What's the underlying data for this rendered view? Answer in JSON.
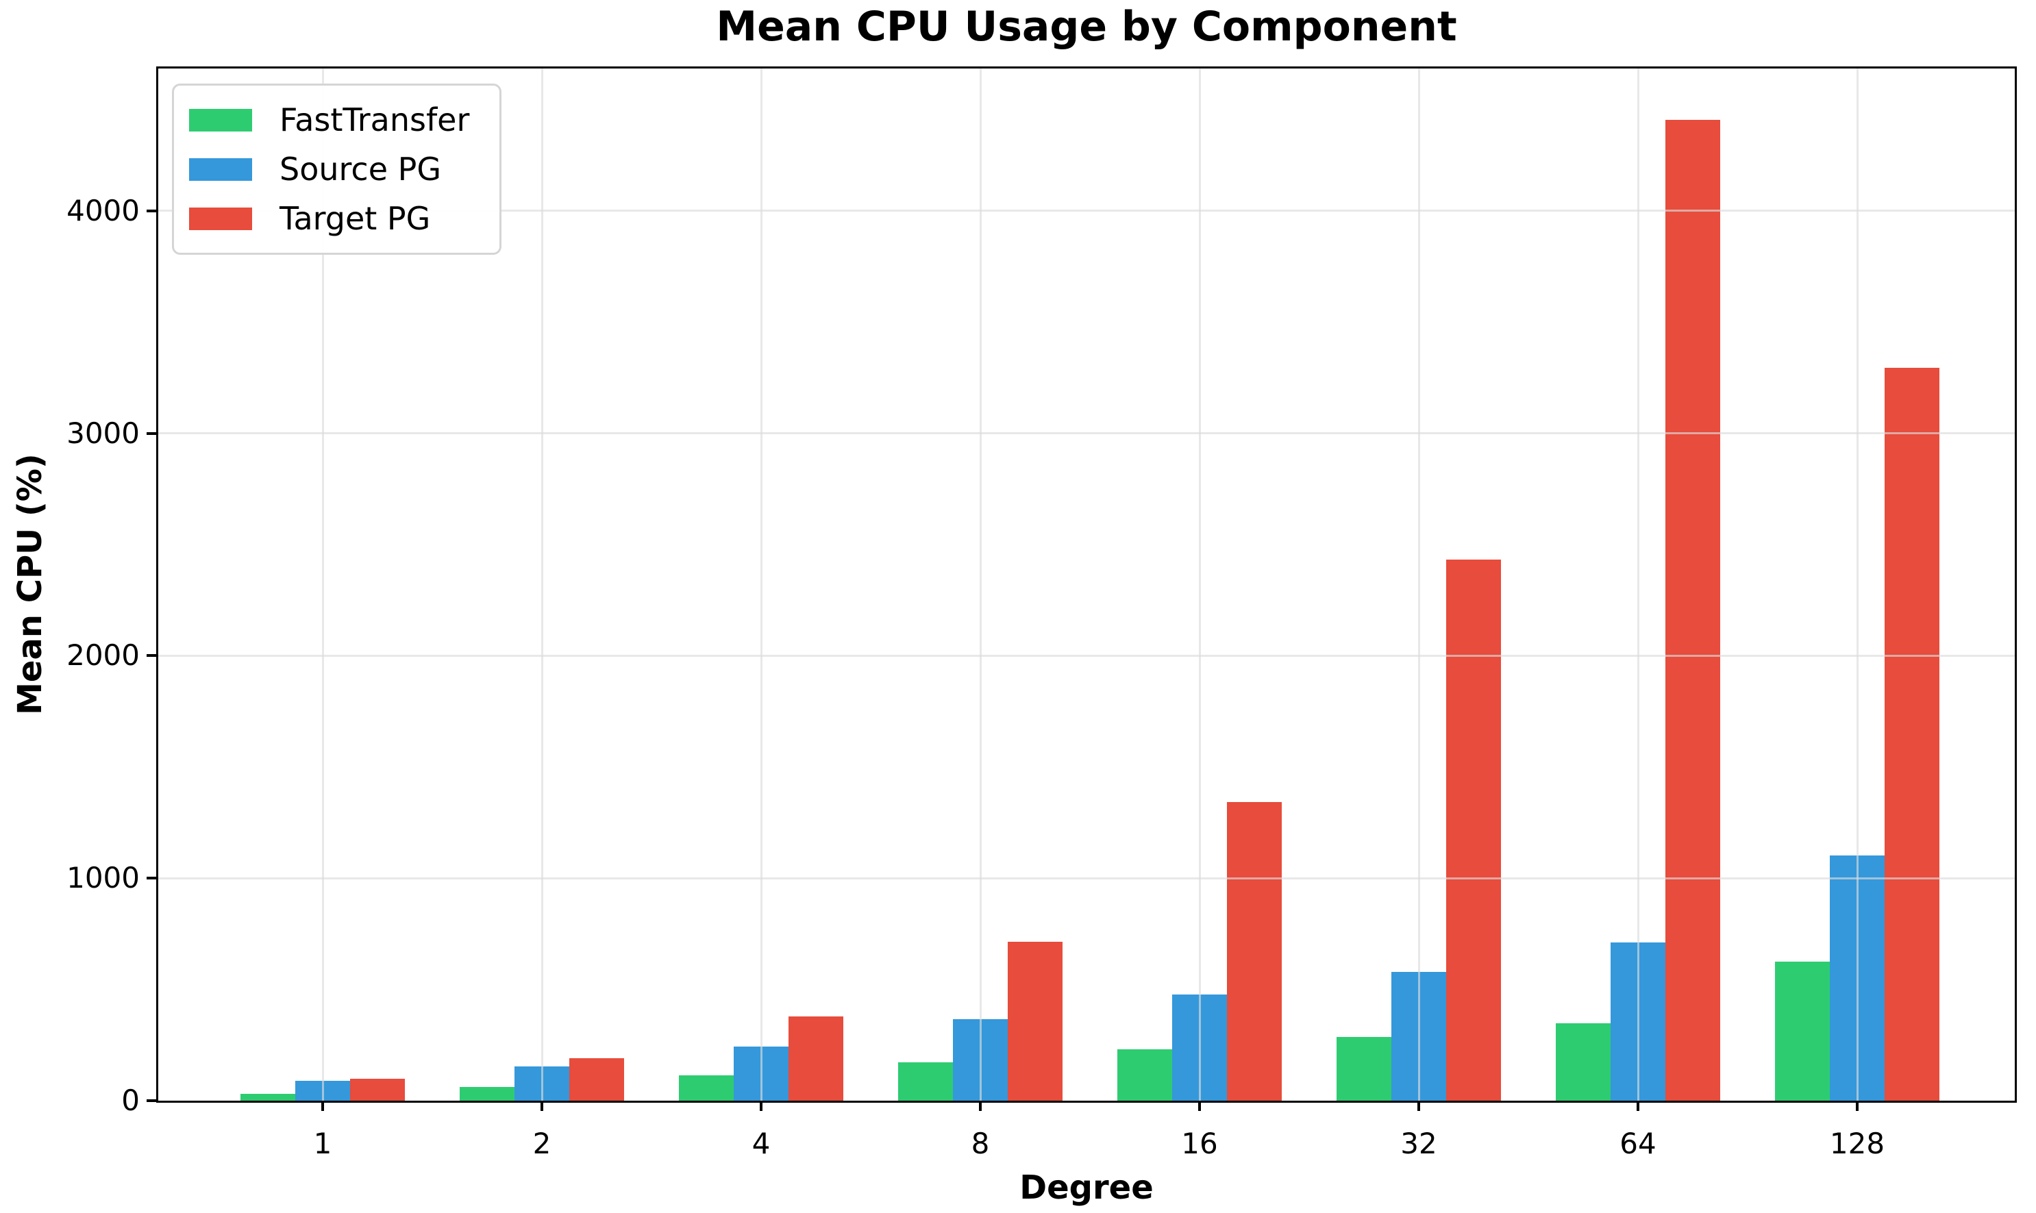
{
  "chart_data": {
    "type": "bar",
    "title": "Mean CPU Usage by Component",
    "xlabel": "Degree",
    "ylabel": "Mean CPU (%)",
    "categories": [
      "1",
      "2",
      "4",
      "8",
      "16",
      "32",
      "64",
      "128"
    ],
    "series": [
      {
        "name": "FastTransfer",
        "color": "#2ecc71",
        "values": [
          30,
          62,
          113,
          173,
          230,
          287,
          348,
          625
        ]
      },
      {
        "name": "Source PG",
        "color": "#3498db",
        "values": [
          90,
          154,
          244,
          367,
          478,
          578,
          710,
          1102
        ]
      },
      {
        "name": "Target PG",
        "color": "#e74c3c",
        "values": [
          97,
          192,
          378,
          714,
          1341,
          2432,
          4408,
          3294
        ]
      }
    ],
    "yticks": [
      0,
      1000,
      2000,
      3000,
      4000
    ],
    "ylim": [
      0,
      4640
    ],
    "grid": true,
    "grid_color": "#dcdcdc",
    "legend_position": "upper left"
  }
}
